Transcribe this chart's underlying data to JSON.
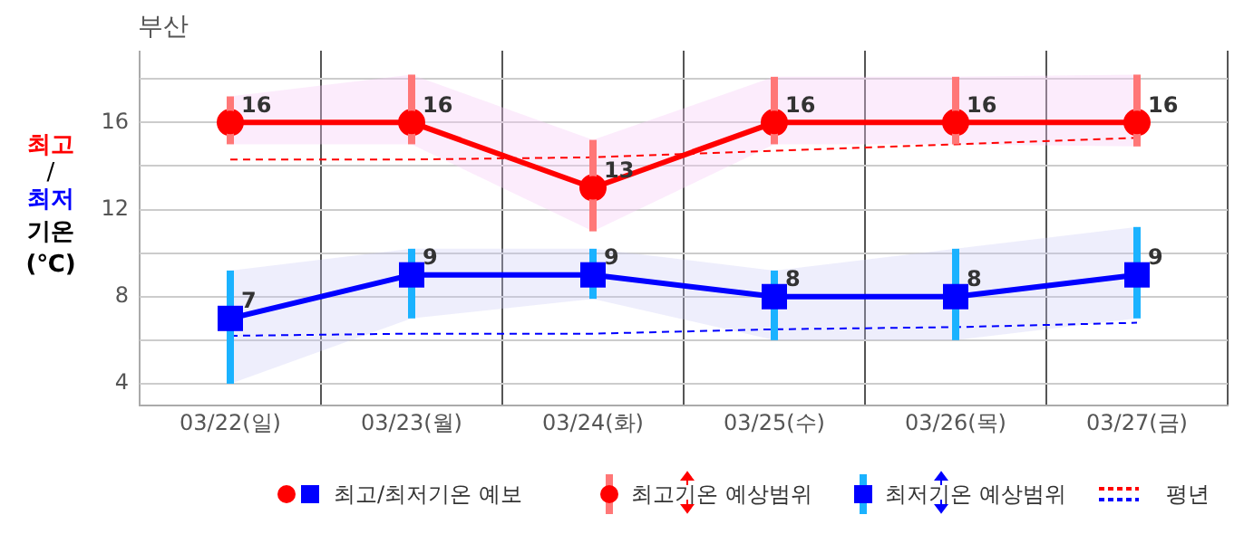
{
  "chart_data": {
    "type": "line",
    "title": "부산",
    "ylabel": "최고/최저 기온 (℃)",
    "categories": [
      "03/22(일)",
      "03/23(월)",
      "03/24(화)",
      "03/25(수)",
      "03/26(목)",
      "03/27(금)"
    ],
    "ylim": [
      3,
      19.3
    ],
    "yticks": [
      4,
      {
        "value": 6,
        "label": null
      },
      8,
      {
        "value": 10,
        "label": null
      },
      12,
      {
        "value": 14,
        "label": null
      },
      16,
      {
        "value": 18,
        "label": null
      }
    ],
    "grid": true,
    "legend": "bottom",
    "annotations": [
      "최고기온 예상범위",
      "최저기온 예상범위"
    ],
    "series": [
      {
        "color": "#ff0000",
        "marker": "circle",
        "data_labels": true,
        "values": [
          16,
          16,
          13,
          16,
          16,
          16
        ],
        "errors": [
          [
            15,
            17.2
          ],
          [
            15,
            18.2
          ],
          [
            11,
            15.2
          ],
          [
            15,
            18.1
          ],
          [
            15,
            18.1
          ],
          [
            14.9,
            18.2
          ]
        ],
        "lower": [
          15,
          15,
          11,
          15,
          15,
          14.9
        ],
        "upper": [
          17.2,
          18.2,
          15.2,
          18.1,
          18.1,
          18.2
        ]
      },
      {
        "name": "최고/최저기온 예보",
        "color": "#0000ff",
        "marker": "square",
        "data_labels": true,
        "values": [
          7,
          9,
          9,
          8,
          8,
          9
        ],
        "errors": [
          [
            4,
            9.2
          ],
          [
            7,
            10.2
          ],
          [
            7.9,
            10.2
          ],
          [
            6,
            9.2
          ],
          [
            6,
            10.2
          ],
          [
            7,
            11.2
          ]
        ],
        "lower": [
          4,
          7,
          7.9,
          6,
          6,
          7
        ],
        "upper": [
          9.2,
          10.2,
          10.2,
          9.2,
          10.2,
          11.2
        ]
      },
      {
        "name": "평년",
        "color": "#ff0000",
        "marker": "none",
        "line_style": "dashed",
        "values": [
          14.3,
          14.3,
          14.4,
          14.7,
          15,
          15.3
        ]
      },
      {
        "color": "#0000ff",
        "marker": "none",
        "line_style": "dashed",
        "values": [
          6.2,
          6.3,
          6.3,
          6.5,
          6.6,
          6.8
        ]
      }
    ]
  }
}
